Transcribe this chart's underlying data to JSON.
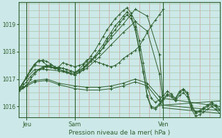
{
  "bg_color": "#cce8e8",
  "grid_color_v": "#d4a0a0",
  "grid_color_h": "#a8c8a8",
  "line_color": "#2d5e2d",
  "title": "Pression niveau de la mer( hPa )",
  "yticks": [
    1016,
    1017,
    1018,
    1019
  ],
  "ylim": [
    1015.6,
    1019.8
  ],
  "xlim": [
    0,
    100
  ],
  "x_day_ticks": [
    [
      4,
      "Jeu"
    ],
    [
      28,
      "Sam"
    ],
    [
      72,
      "Ven"
    ]
  ],
  "x_vlines": [
    4,
    28,
    72
  ],
  "series": [
    {
      "x": [
        0,
        2,
        4,
        6,
        8,
        10,
        12,
        14,
        16,
        18,
        20,
        22,
        24,
        26,
        28,
        30,
        32,
        34,
        36,
        38,
        40,
        42,
        44,
        46,
        48,
        50,
        52,
        54,
        56,
        58,
        60,
        62,
        64,
        66,
        68,
        70,
        72,
        74,
        76,
        78,
        80,
        82,
        84,
        86,
        88,
        90,
        92,
        94,
        96,
        98,
        100
      ],
      "y": [
        1016.6,
        1016.7,
        1016.75,
        1017.0,
        1017.2,
        1017.35,
        1017.45,
        1017.5,
        1017.5,
        1017.45,
        1017.4,
        1017.4,
        1017.35,
        1017.3,
        1017.25,
        1017.3,
        1017.4,
        1017.55,
        1017.7,
        1017.85,
        1018.05,
        1018.25,
        1018.5,
        1018.7,
        1018.95,
        1019.1,
        1019.3,
        1019.45,
        1019.3,
        1018.9,
        1018.1,
        1017.3,
        1016.4,
        1016.0,
        1015.95,
        1016.1,
        1016.3,
        1016.45,
        1016.4,
        1016.25,
        1016.5,
        1016.6,
        1016.45,
        1016.0,
        1015.75,
        1015.8,
        1015.9,
        1016.0,
        1016.1,
        1016.0,
        1015.85
      ]
    },
    {
      "x": [
        0,
        2,
        4,
        6,
        8,
        10,
        12,
        14,
        16,
        18,
        20,
        22,
        24,
        26,
        28,
        30,
        32,
        34,
        36,
        38,
        40,
        42,
        44,
        46,
        48,
        50,
        52,
        54,
        56,
        58,
        60,
        62,
        64,
        66,
        68,
        70,
        72,
        74,
        76,
        78,
        80,
        82,
        84,
        86,
        88,
        90,
        92,
        94,
        96,
        98,
        100
      ],
      "y": [
        1016.6,
        1016.75,
        1016.9,
        1017.1,
        1017.25,
        1017.35,
        1017.4,
        1017.45,
        1017.45,
        1017.4,
        1017.4,
        1017.4,
        1017.35,
        1017.3,
        1017.25,
        1017.35,
        1017.5,
        1017.65,
        1017.85,
        1018.05,
        1018.3,
        1018.55,
        1018.8,
        1019.0,
        1019.2,
        1019.35,
        1019.5,
        1019.6,
        1019.4,
        1019.1,
        1018.4,
        1017.6,
        1016.7,
        1016.3,
        1016.15,
        1016.25,
        1016.4,
        1016.55,
        1016.45,
        1016.3,
        1016.55,
        1016.65,
        1016.5,
        1016.05,
        1015.8,
        1015.85,
        1015.95,
        1016.05,
        1016.15,
        1016.05,
        1015.9
      ]
    },
    {
      "x": [
        0,
        4,
        8,
        14,
        20,
        28,
        34,
        40,
        46,
        52,
        58,
        64,
        70,
        72,
        100
      ],
      "y": [
        1016.6,
        1017.1,
        1017.5,
        1017.45,
        1017.35,
        1017.2,
        1017.5,
        1017.95,
        1018.5,
        1019.0,
        1019.55,
        1019.3,
        1017.9,
        1016.3,
        1016.0
      ]
    },
    {
      "x": [
        0,
        4,
        8,
        14,
        20,
        28,
        34,
        40,
        46,
        52,
        58,
        64,
        70,
        72,
        100
      ],
      "y": [
        1016.6,
        1017.05,
        1017.35,
        1017.35,
        1017.3,
        1017.15,
        1017.4,
        1017.8,
        1018.25,
        1018.7,
        1019.1,
        1018.75,
        1017.2,
        1016.05,
        1016.2
      ]
    },
    {
      "x": [
        0,
        4,
        8,
        14,
        20,
        28,
        34,
        40,
        46,
        52,
        58,
        64,
        70,
        72,
        100
      ],
      "y": [
        1016.55,
        1016.8,
        1016.95,
        1017.0,
        1016.85,
        1016.75,
        1016.7,
        1016.7,
        1016.75,
        1016.85,
        1017.0,
        1016.85,
        1016.35,
        1016.05,
        1015.85
      ]
    },
    {
      "x": [
        0,
        4,
        8,
        14,
        20,
        28,
        34,
        40,
        46,
        52,
        58,
        64,
        70,
        72,
        100
      ],
      "y": [
        1016.55,
        1016.75,
        1016.9,
        1016.95,
        1016.8,
        1016.65,
        1016.6,
        1016.6,
        1016.65,
        1016.75,
        1016.9,
        1016.75,
        1016.2,
        1015.95,
        1015.75
      ]
    },
    {
      "x": [
        0,
        2,
        4,
        6,
        8,
        10,
        12,
        14,
        16,
        18,
        20,
        22,
        24,
        26,
        28,
        30,
        32,
        34,
        36,
        38,
        40,
        42,
        44,
        46,
        48,
        50,
        52,
        54,
        56,
        58,
        60,
        62,
        64,
        66,
        68,
        70,
        72,
        74,
        76,
        78,
        80,
        82,
        84,
        86,
        88,
        90,
        92,
        94,
        96,
        98,
        100
      ],
      "y": [
        1016.65,
        1016.85,
        1017.05,
        1017.35,
        1017.55,
        1017.65,
        1017.7,
        1017.65,
        1017.55,
        1017.45,
        1017.35,
        1017.3,
        1017.25,
        1017.2,
        1017.15,
        1017.25,
        1017.35,
        1017.5,
        1017.65,
        1017.8,
        1017.95,
        1018.15,
        1018.4,
        1018.6,
        1018.8,
        1019.0,
        1019.2,
        1019.35,
        1019.2,
        1018.8,
        1018.05,
        1017.25,
        1016.35,
        1015.95,
        1015.9,
        1016.05,
        1016.25,
        1016.4,
        1016.35,
        1016.2,
        1016.4,
        1016.5,
        1016.35,
        1015.9,
        1015.65,
        1015.7,
        1015.8,
        1015.9,
        1016.0,
        1015.9,
        1015.75
      ]
    }
  ],
  "wavy_series": {
    "x": [
      4,
      6,
      8,
      10,
      12,
      14,
      16,
      18,
      20,
      22,
      24,
      26,
      28,
      30,
      32,
      34,
      36,
      38,
      40,
      42,
      44,
      46,
      48,
      50,
      52,
      54,
      56,
      58,
      60,
      62,
      64,
      66,
      68,
      70,
      72
    ],
    "y": [
      1017.1,
      1017.35,
      1017.55,
      1017.7,
      1017.65,
      1017.5,
      1017.45,
      1017.4,
      1017.45,
      1017.6,
      1017.55,
      1017.5,
      1017.45,
      1017.5,
      1017.55,
      1017.7,
      1017.75,
      1017.65,
      1017.6,
      1017.55,
      1017.5,
      1017.45,
      1017.5,
      1017.6,
      1017.75,
      1017.85,
      1017.95,
      1018.05,
      1018.2,
      1018.45,
      1018.7,
      1018.95,
      1019.15,
      1019.35,
      1019.55
    ]
  }
}
